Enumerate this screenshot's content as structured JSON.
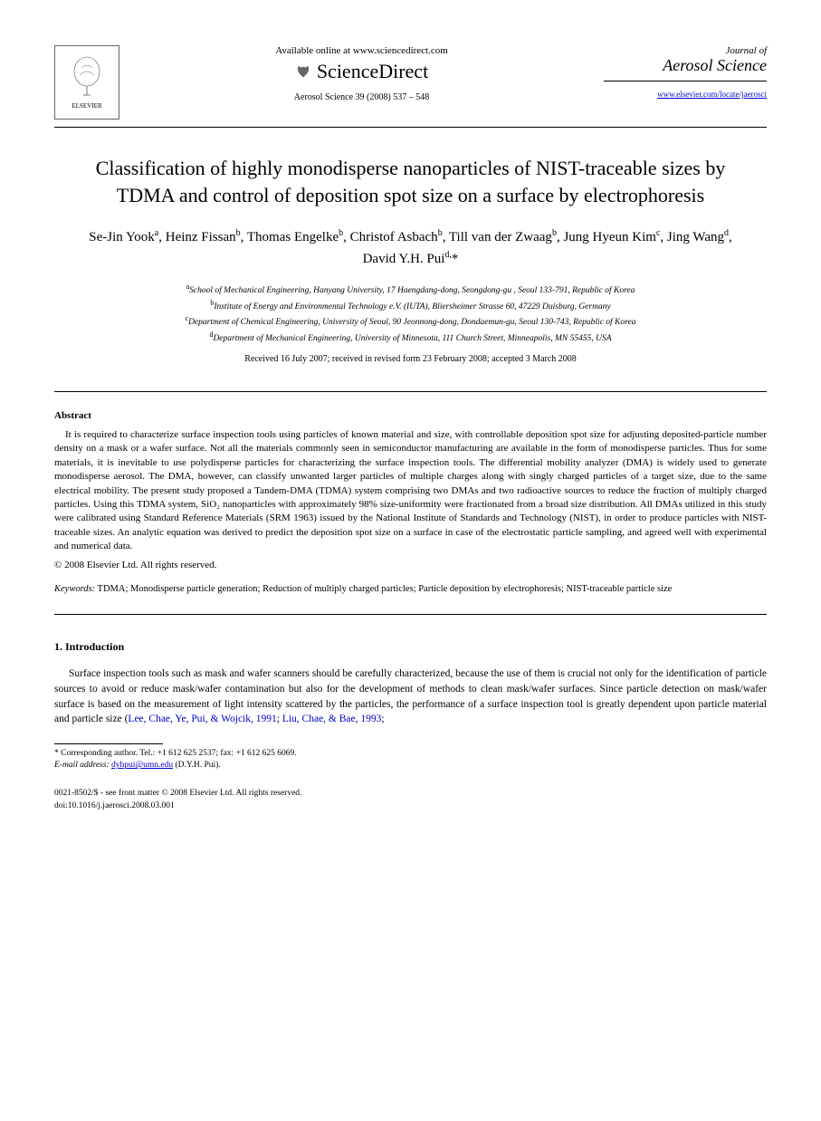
{
  "header": {
    "publisher": "ELSEVIER",
    "available_online": "Available online at www.sciencedirect.com",
    "science_direct": "ScienceDirect",
    "journal_ref": "Aerosol Science 39 (2008) 537 – 548",
    "journal_pre": "Journal of",
    "journal_name": "Aerosol Science",
    "journal_url": "www.elsevier.com/locate/jaerosci"
  },
  "title": "Classification of highly monodisperse nanoparticles of NIST-traceable sizes by TDMA and control of deposition spot size on a surface by electrophoresis",
  "authors_html": "Se-Jin Yook<sup>a</sup>, Heinz Fissan<sup>b</sup>, Thomas Engelke<sup>b</sup>, Christof Asbach<sup>b</sup>, Till van der Zwaag<sup>b</sup>, Jung Hyeun Kim<sup>c</sup>, Jing Wang<sup>d</sup>, David Y.H. Pui<sup>d,</sup>*",
  "affiliations": [
    {
      "sup": "a",
      "text": "School of Mechanical Engineering, Hanyang University, 17 Haengdang-dong, Seongdong-gu , Seoul 133-791, Republic of Korea"
    },
    {
      "sup": "b",
      "text": "Institute of Energy and Environmental Technology e.V. (IUTA), Bliersheimer Strasse 60, 47229 Duisburg, Germany"
    },
    {
      "sup": "c",
      "text": "Department of Chemical Engineering, University of Seoul, 90 Jeonnong-dong, Dondaemun-gu, Seoul 130-743, Republic of Korea"
    },
    {
      "sup": "d",
      "text": "Department of Mechanical Engineering, University of Minnesota, 111 Church Street, Minneapolis, MN 55455, USA"
    }
  ],
  "dates": "Received 16 July 2007; received in revised form 23 February 2008; accepted 3 March 2008",
  "abstract_label": "Abstract",
  "abstract": "It is required to characterize surface inspection tools using particles of known material and size, with controllable deposition spot size for adjusting deposited-particle number density on a mask or a wafer surface. Not all the materials commonly seen in semiconductor manufacturing are available in the form of monodisperse particles. Thus for some materials, it is inevitable to use polydisperse particles for characterizing the surface inspection tools. The differential mobility analyzer (DMA) is widely used to generate monodisperse aerosol. The DMA, however, can classify unwanted larger particles of multiple charges along with singly charged particles of a target size, due to the same electrical mobility. The present study proposed a Tandem-DMA (TDMA) system comprising two DMAs and two radioactive sources to reduce the fraction of multiply charged particles. Using this TDMA system, SiO₂ nanoparticles with approximately 98% size-uniformity were fractionated from a broad size distribution. All DMAs utilized in this study were calibrated using Standard Reference Materials (SRM 1963) issued by the National Institute of Standards and Technology (NIST), in order to produce particles with NIST-traceable sizes. An analytic equation was derived to predict the deposition spot size on a surface in case of the electrostatic particle sampling, and agreed well with experimental and numerical data.",
  "copyright": "© 2008 Elsevier Ltd. All rights reserved.",
  "keywords_label": "Keywords:",
  "keywords": " TDMA; Monodisperse particle generation; Reduction of multiply charged particles; Particle deposition by electrophoresis; NIST-traceable particle size",
  "section1_heading": "1. Introduction",
  "section1_p1_pre": "Surface inspection tools such as mask and wafer scanners should be carefully characterized, because the use of them is crucial not only for the identification of particle sources to avoid or reduce mask/wafer contamination but also for the development of methods to clean mask/wafer surfaces. Since particle detection on mask/wafer surface is based on the measurement of light intensity scattered by the particles, the performance of a surface inspection tool is greatly dependent upon particle material and particle size (",
  "section1_cite1": "Lee, Chae, Ye, Pui, & Wojcik, 1991",
  "section1_sep": "; ",
  "section1_cite2": "Liu, Chae, & Bae, 1993",
  "section1_p1_post": ";",
  "footnote": {
    "corr": "* Corresponding author. Tel.: +1 612 625 2537; fax: +1 612 625 6069.",
    "email_label": "E-mail address:",
    "email": "dyhpui@umn.edu",
    "email_name": " (D.Y.H. Pui)."
  },
  "footer": {
    "line1": "0021-8502/$ - see front matter © 2008 Elsevier Ltd. All rights reserved.",
    "line2": "doi:10.1016/j.jaerosci.2008.03.001"
  },
  "colors": {
    "link": "#0000cc",
    "text": "#000000",
    "background": "#ffffff"
  },
  "typography": {
    "title_fontsize": 22,
    "author_fontsize": 15,
    "body_fontsize": 11.5,
    "abstract_fontsize": 11,
    "footnote_fontsize": 9.5
  }
}
